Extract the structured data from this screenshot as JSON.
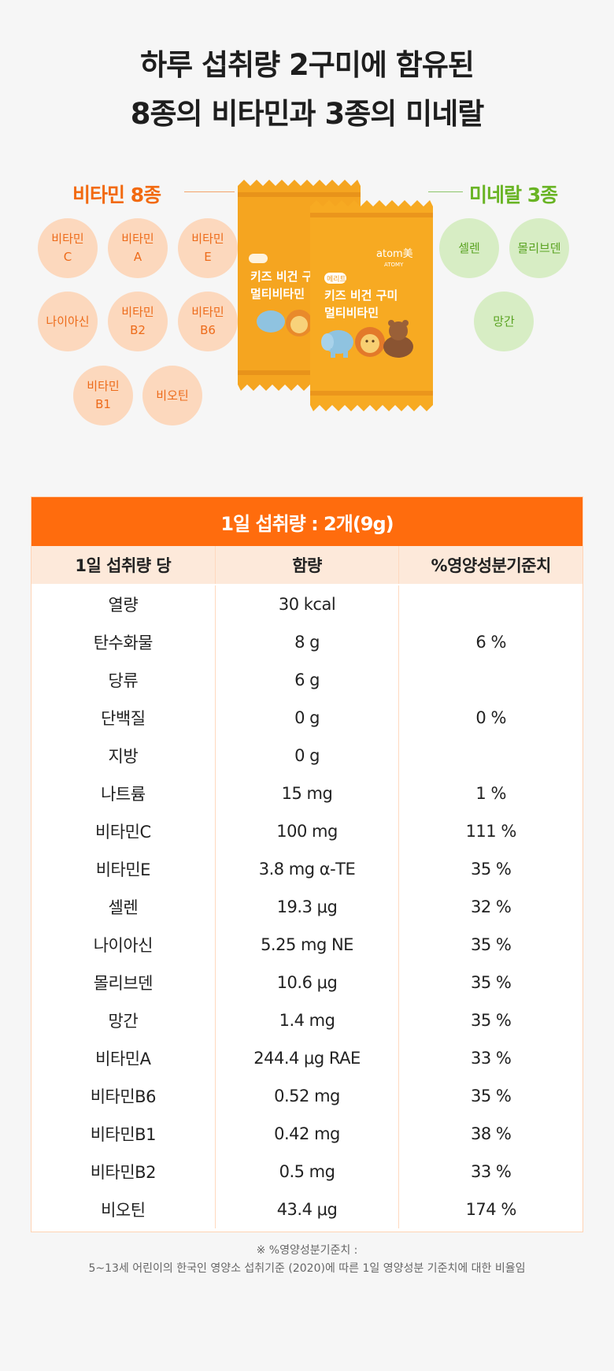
{
  "headline": {
    "line1": "하루 섭취량 2구미에 함유된",
    "line2": "8종의 비타민과 3종의 미네랄"
  },
  "vitamins": {
    "title": "비타민 8종",
    "items": [
      "비타민\nC",
      "비타민\nA",
      "비타민\nE",
      "나이아신",
      "비타민\nB2",
      "비타민\nB6",
      "비타민\nB1",
      "비오틴"
    ]
  },
  "minerals": {
    "title": "미네랄 3종",
    "items": [
      "셀렌",
      "몰리브덴",
      "망간"
    ]
  },
  "product": {
    "brand": "atom美",
    "brand_sub": "ATOMY",
    "badge": "메리트",
    "name_line1": "키즈 비건 구미",
    "name_line2": "멀티비타민"
  },
  "table": {
    "title": "1일 섭취량 : 2개(9g)",
    "columns": [
      "1일 섭취량 당",
      "함량",
      "%영양성분기준치"
    ],
    "rows": [
      [
        "열량",
        "30 kcal",
        ""
      ],
      [
        "탄수화물",
        "8 g",
        "6 %"
      ],
      [
        "당류",
        "6 g",
        ""
      ],
      [
        "단백질",
        "0 g",
        "0 %"
      ],
      [
        "지방",
        "0 g",
        ""
      ],
      [
        "나트륨",
        "15 mg",
        "1 %"
      ],
      [
        "비타민C",
        "100 mg",
        "111 %"
      ],
      [
        "비타민E",
        "3.8 mg α-TE",
        "35 %"
      ],
      [
        "셀렌",
        "19.3 μg",
        "32 %"
      ],
      [
        "나이아신",
        "5.25 mg NE",
        "35 %"
      ],
      [
        "몰리브덴",
        "10.6 μg",
        "35 %"
      ],
      [
        "망간",
        "1.4 mg",
        "35 %"
      ],
      [
        "비타민A",
        "244.4 μg RAE",
        "33 %"
      ],
      [
        "비타민B6",
        "0.52 mg",
        "35 %"
      ],
      [
        "비타민B1",
        "0.42 mg",
        "38 %"
      ],
      [
        "비타민B2",
        "0.5 mg",
        "33 %"
      ],
      [
        "비오틴",
        "43.4 μg",
        "174 %"
      ]
    ]
  },
  "footnote": {
    "line1": "※ %영양성분기준치 :",
    "line2": "5~13세 어린이의 한국인 영양소 섭취기준 (2020)에 따른 1일 영양성분 기준치에 대한 비율임"
  },
  "colors": {
    "accent_orange": "#ff6c0d",
    "vitamin_circle": "#fcd8bd",
    "mineral_circle": "#d7edc4",
    "mineral_text": "#69b424"
  }
}
